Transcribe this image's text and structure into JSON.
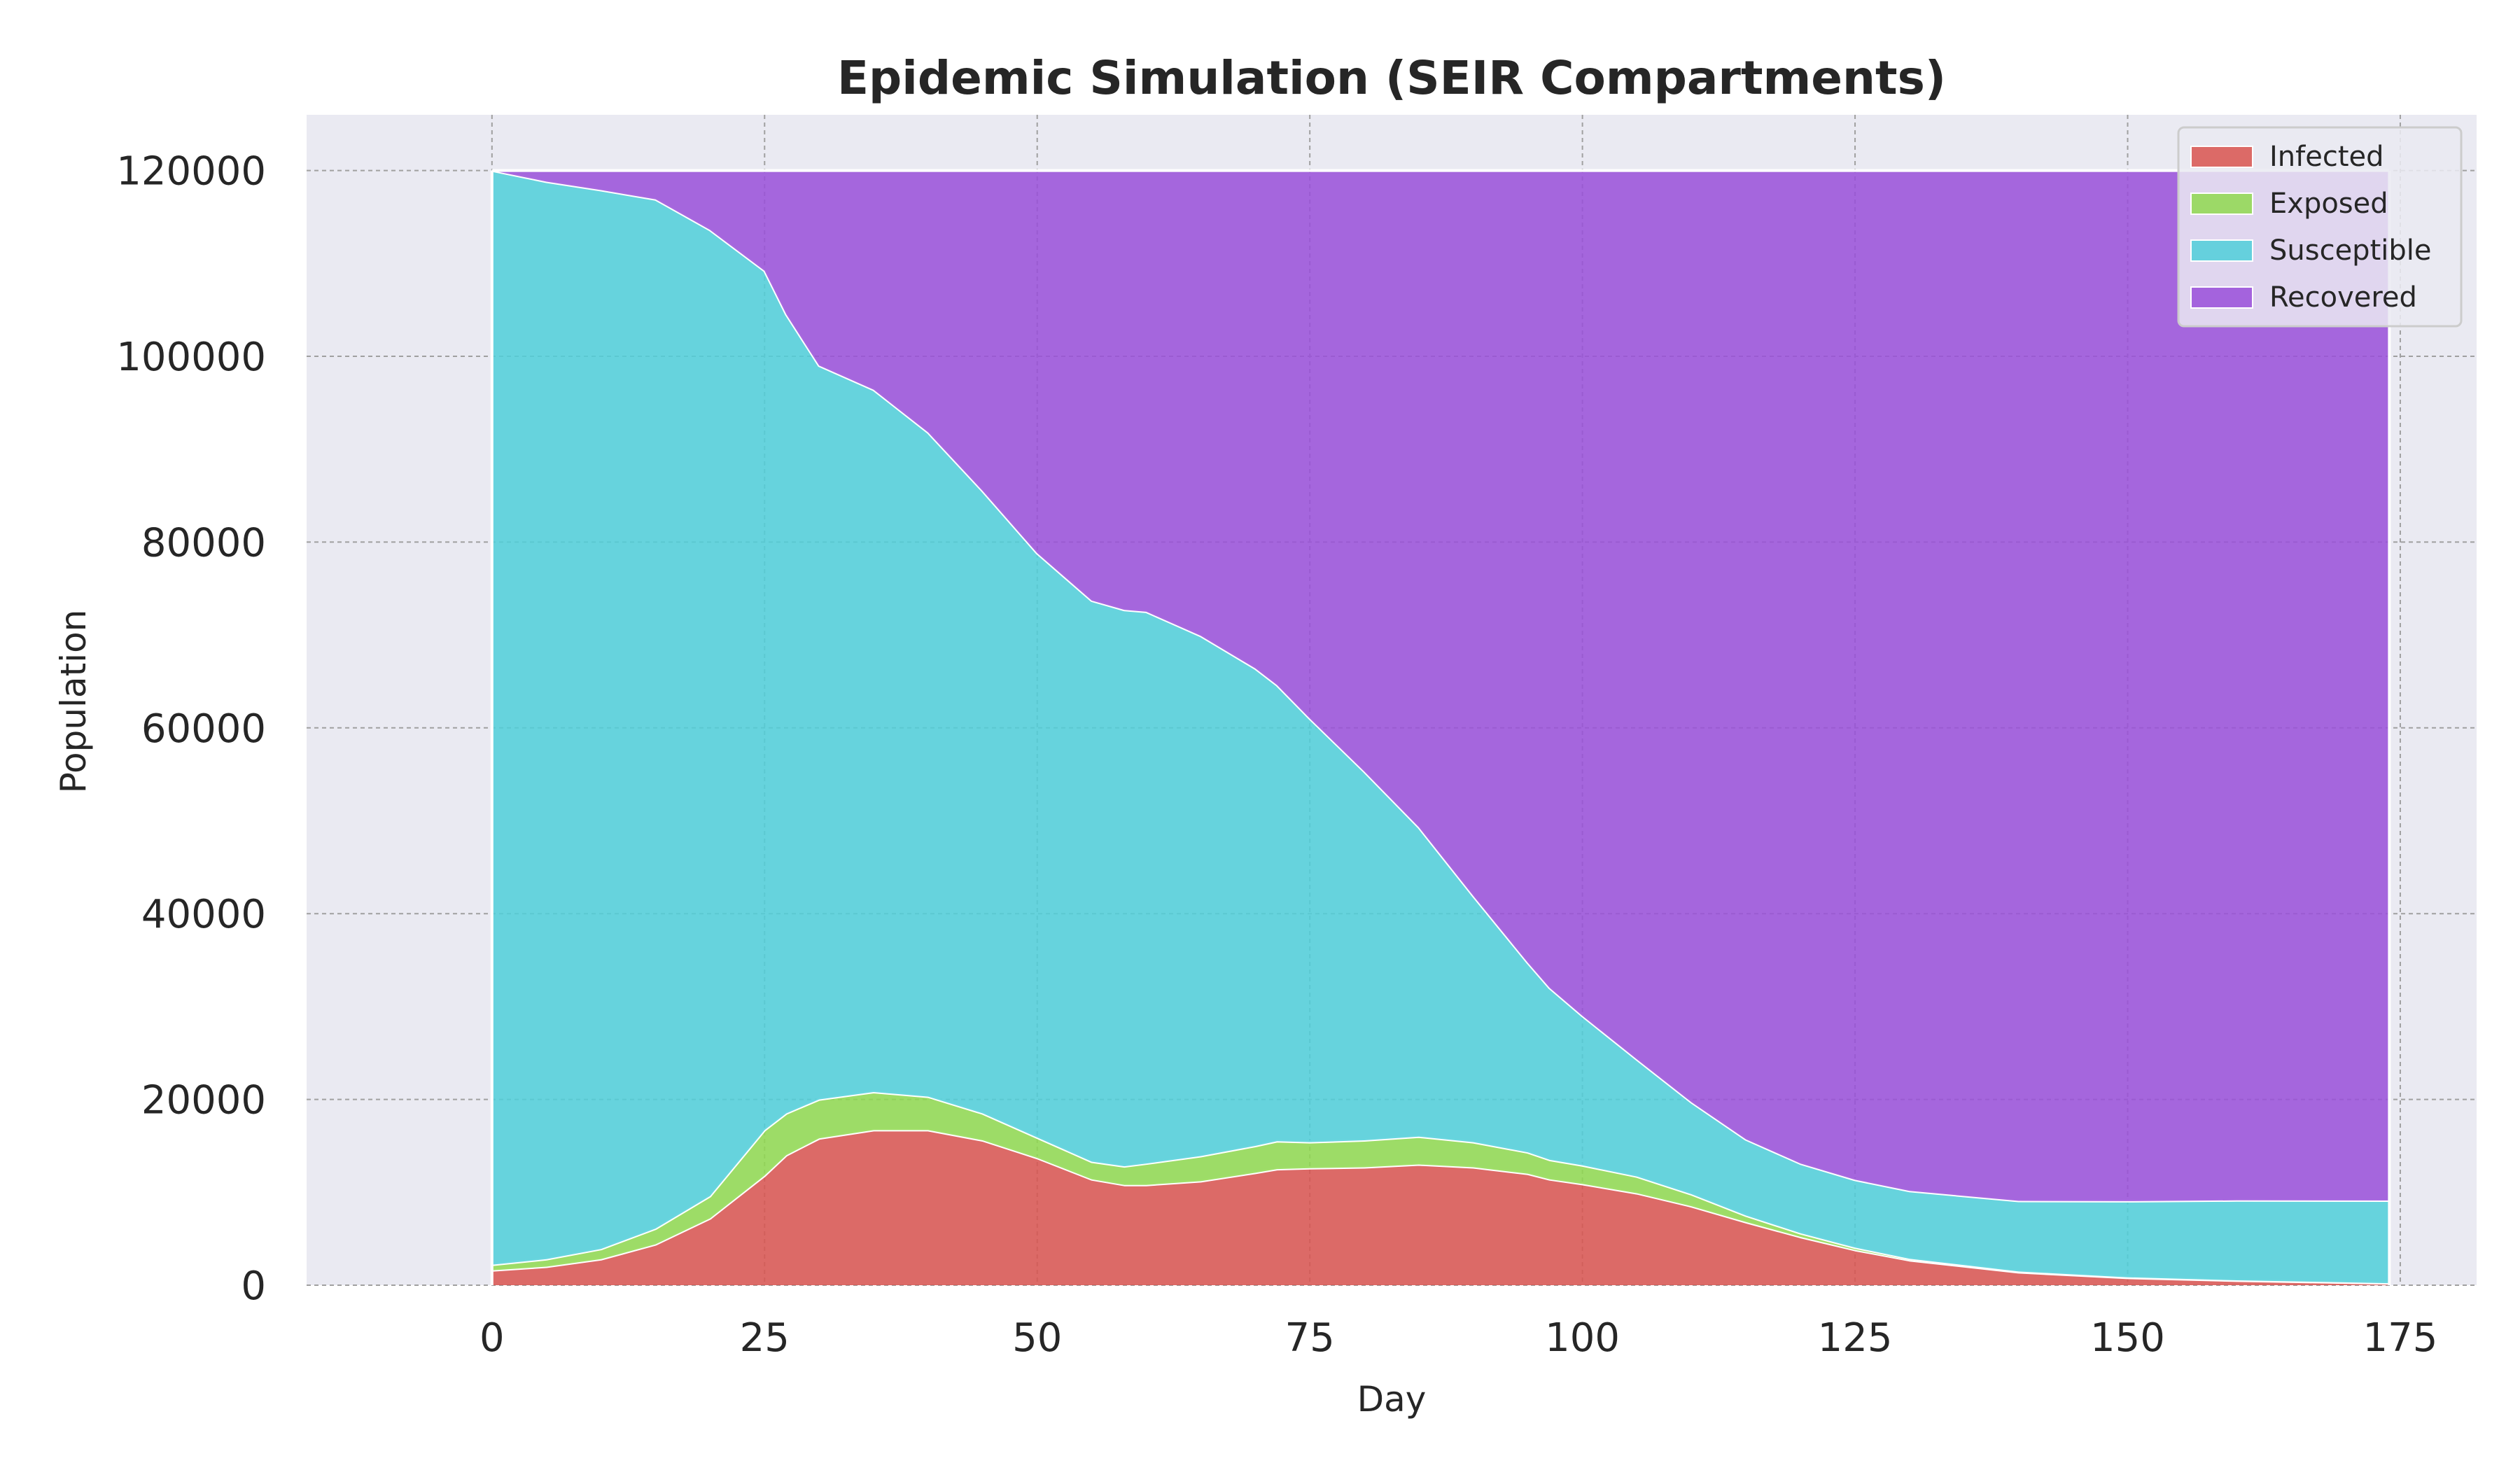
{
  "chart_data": {
    "type": "area",
    "stacked": true,
    "title": "Epidemic Simulation (SEIR Compartments)",
    "xlabel": "Day",
    "ylabel": "Population",
    "xlim": [
      -17,
      182
    ],
    "ylim": [
      0,
      126000
    ],
    "xticks": [
      0,
      25,
      50,
      75,
      100,
      125,
      150,
      175
    ],
    "yticks": [
      0,
      20000,
      40000,
      60000,
      80000,
      100000,
      120000
    ],
    "grid": true,
    "legend_position": "top-right",
    "colors": {
      "background": "#eaeaf2",
      "grid": "#a0a0a0",
      "Infected": "#d9534f",
      "Exposed": "#8fd94f",
      "Susceptible": "#4fcfd9",
      "Recovered": "#994fd9"
    },
    "x": [
      0,
      5,
      10,
      15,
      20,
      25,
      27,
      30,
      35,
      40,
      45,
      50,
      55,
      58,
      60,
      65,
      70,
      72,
      75,
      80,
      85,
      90,
      95,
      97,
      100,
      105,
      110,
      115,
      120,
      125,
      130,
      140,
      150,
      160,
      174
    ],
    "series": [
      {
        "name": "Infected",
        "values": [
          1600,
          2000,
          2800,
          4400,
          7200,
          11800,
          14000,
          15800,
          16700,
          16700,
          15600,
          13700,
          11400,
          10800,
          10800,
          11200,
          12100,
          12500,
          12600,
          12700,
          13000,
          12700,
          12000,
          11400,
          10900,
          9900,
          8500,
          6800,
          5200,
          3800,
          2700,
          1400,
          800,
          500,
          200
        ]
      },
      {
        "name": "Exposed",
        "values": [
          600,
          800,
          1100,
          1700,
          2400,
          4900,
          4500,
          4200,
          4100,
          3600,
          2900,
          2200,
          1900,
          2000,
          2300,
          2700,
          2900,
          3000,
          2800,
          2900,
          3000,
          2700,
          2300,
          2100,
          2000,
          1800,
          1300,
          700,
          400,
          250,
          150,
          80,
          50,
          30,
          15
        ]
      },
      {
        "name": "Susceptible",
        "values": [
          117800,
          116000,
          114000,
          110800,
          104000,
          92500,
          86000,
          79000,
          75600,
          71500,
          67000,
          62900,
          60400,
          59900,
          59400,
          56000,
          51400,
          49100,
          45600,
          39700,
          33300,
          26500,
          20400,
          18500,
          16100,
          12600,
          9900,
          8200,
          7500,
          7300,
          7300,
          7600,
          8200,
          8600,
          8900
        ]
      },
      {
        "name": "Recovered",
        "values": [
          0,
          1200,
          2100,
          3100,
          6400,
          10800,
          15500,
          21000,
          23600,
          28200,
          34500,
          41200,
          46300,
          47300,
          47500,
          50100,
          53600,
          55400,
          59000,
          64700,
          70700,
          78100,
          85300,
          88000,
          91000,
          95700,
          100300,
          104300,
          106900,
          108650,
          109850,
          110920,
          110950,
          110870,
          110885
        ]
      }
    ]
  }
}
